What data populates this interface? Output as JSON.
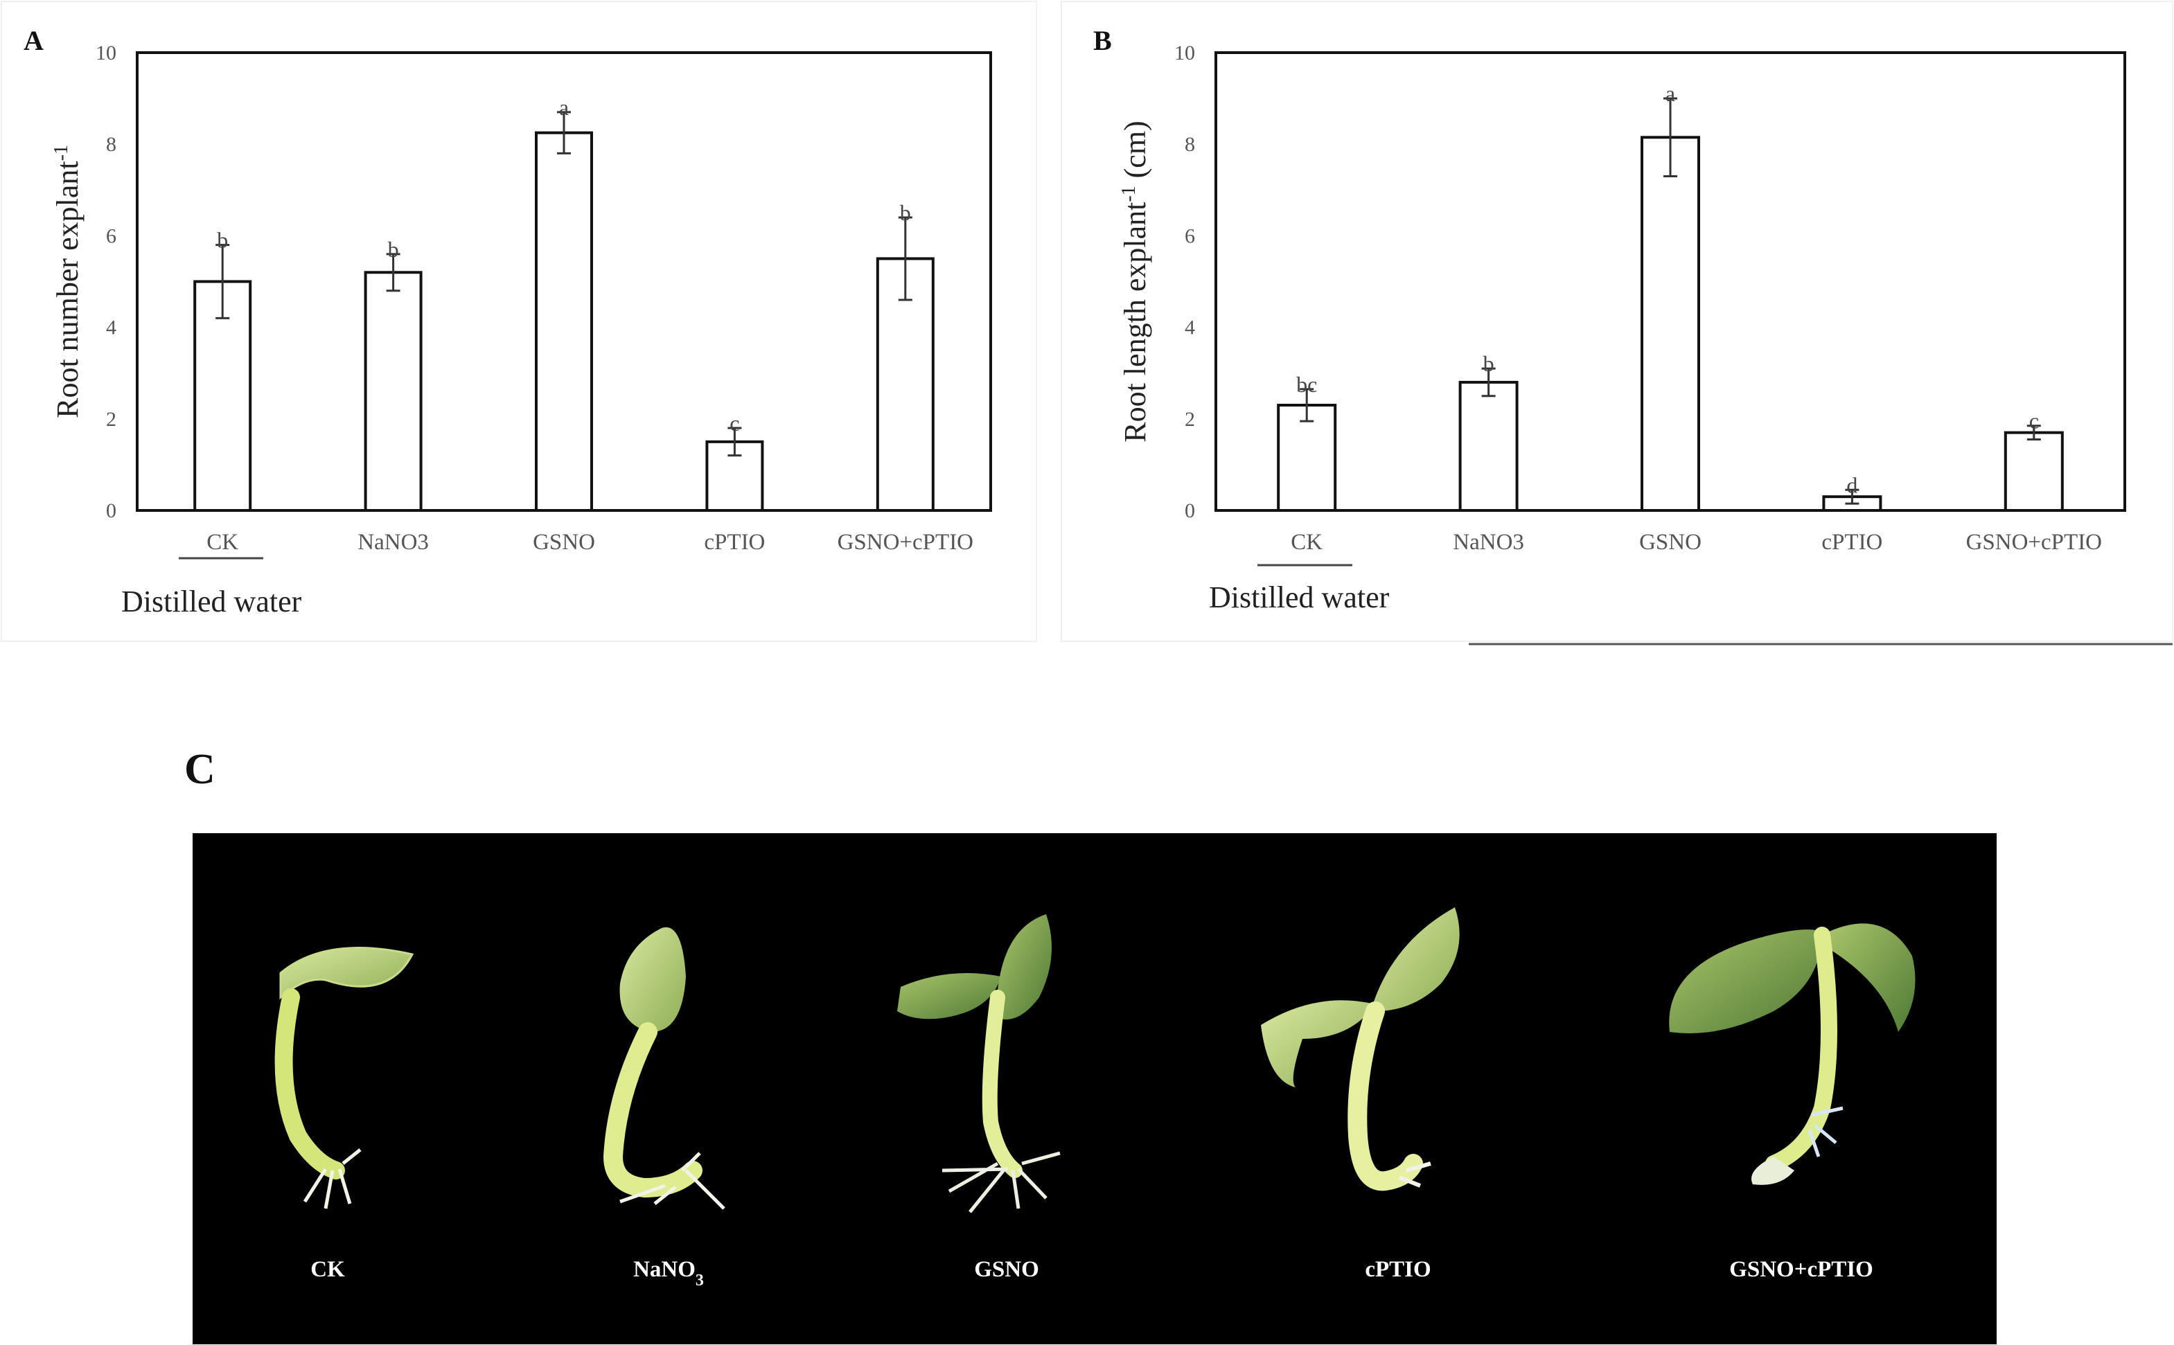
{
  "panels": {
    "a": "A",
    "b": "B",
    "c": "C"
  },
  "group_label": "Distilled water",
  "chart_data": [
    {
      "type": "bar",
      "panel": "A",
      "ylabel": "Root number explant",
      "ylabel_sup": "-1",
      "ylim": [
        0,
        10
      ],
      "yticks": [
        0,
        2,
        4,
        6,
        8,
        10
      ],
      "categories": [
        "CK",
        "NaNO3",
        "GSNO",
        "cPTIO",
        "GSNO+cPTIO"
      ],
      "values": [
        5.0,
        5.2,
        8.25,
        1.5,
        5.5
      ],
      "errors": [
        0.8,
        0.4,
        0.45,
        0.3,
        0.9
      ],
      "letters": [
        "b",
        "b",
        "a",
        "c",
        "b"
      ]
    },
    {
      "type": "bar",
      "panel": "B",
      "ylabel": "Root length explant",
      "ylabel_sup": "-1",
      "ylabel_unit": " (cm)",
      "ylim": [
        0,
        10
      ],
      "yticks": [
        0,
        2,
        4,
        6,
        8,
        10
      ],
      "categories": [
        "CK",
        "NaNO3",
        "GSNO",
        "cPTIO",
        "GSNO+cPTIO"
      ],
      "values": [
        2.3,
        2.8,
        8.15,
        0.3,
        1.7
      ],
      "errors": [
        0.35,
        0.3,
        0.85,
        0.15,
        0.15
      ],
      "letters": [
        "bc",
        "b",
        "a",
        "d",
        "c"
      ]
    }
  ],
  "photo": {
    "labels": [
      "CK",
      "NaNO",
      "GSNO",
      "cPTIO",
      "GSNO+cPTIO"
    ],
    "nano_sub": "3"
  },
  "colors": {
    "bar_fill": "#ffffff",
    "bar_stroke": "#111111",
    "photo_bg": "#000000",
    "plant_stem": "#d4e67a",
    "plant_leaf": "#7fa84a"
  }
}
